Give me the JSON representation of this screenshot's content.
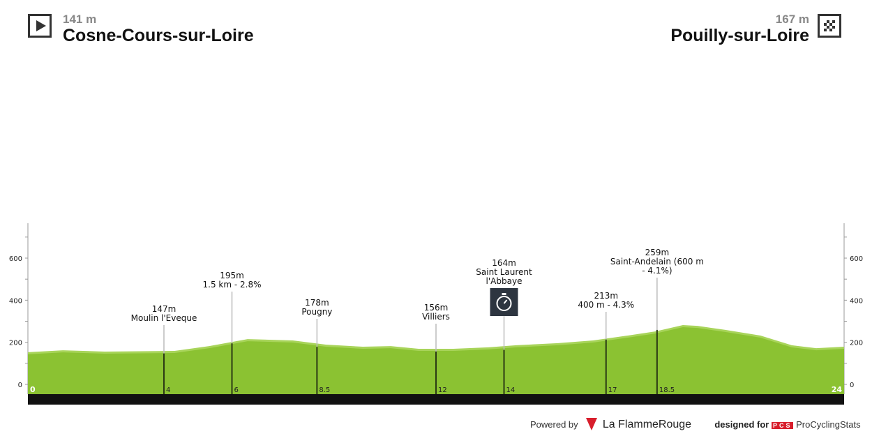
{
  "start": {
    "altitude": "141 m",
    "town": "Cosne-Cours-sur-Loire",
    "icon": "play-icon"
  },
  "finish": {
    "altitude": "167 m",
    "town": "Pouilly-sur-Loire",
    "icon": "checkered-flag-icon"
  },
  "footer": {
    "powered_by": "Powered by",
    "brand1": "La FlammeRouge",
    "designed_for": "designed for",
    "pcs_badge": "PCS",
    "brand2": "ProCyclingStats"
  },
  "colors": {
    "profile": "#8bc232",
    "profile_light": "#a8d45a",
    "road": "#111111",
    "marker": "#2b3a14"
  },
  "chart_data": {
    "type": "area",
    "xlabel": "",
    "ylabel": "",
    "xlim": [
      0,
      24
    ],
    "ylim": [
      -50,
      750
    ],
    "y_ticks": [
      0,
      200,
      400,
      600
    ],
    "x_end_labels": [
      "0",
      "24"
    ],
    "x": [
      0,
      1.03,
      2.26,
      4.31,
      5.33,
      6.46,
      7.79,
      8.76,
      9.85,
      10.67,
      11.49,
      12.51,
      13.54,
      14.36,
      15.59,
      16.62,
      17.64,
      18.46,
      19.26,
      19.69,
      20.51,
      21.54,
      22.46,
      23.18,
      24
    ],
    "elevation": [
      143,
      152,
      146,
      149,
      172,
      205,
      199,
      179,
      169,
      172,
      159,
      159,
      166,
      176,
      186,
      199,
      222,
      242,
      272,
      268,
      249,
      222,
      176,
      162,
      169
    ],
    "markers": [
      {
        "km": 4,
        "label_km": "4",
        "lines": [
          "147m",
          "Moulin l'Eveque"
        ],
        "elev": 147
      },
      {
        "km": 6,
        "label_km": "6",
        "lines": [
          "195m",
          "1.5 km - 2.8%"
        ],
        "elev": 195
      },
      {
        "km": 8.5,
        "label_km": "8.5",
        "lines": [
          "178m",
          "Pougny"
        ],
        "elev": 178
      },
      {
        "km": 12,
        "label_km": "12",
        "lines": [
          "156m",
          "Villiers"
        ],
        "elev": 156
      },
      {
        "km": 14,
        "label_km": "14",
        "lines": [
          "164m",
          "Saint Laurent",
          "l'Abbaye"
        ],
        "elev": 164,
        "icon": "stopwatch-icon"
      },
      {
        "km": 17,
        "label_km": "17",
        "lines": [
          "213m",
          "400 m - 4.3%"
        ],
        "elev": 213
      },
      {
        "km": 18.5,
        "label_km": "18.5",
        "lines": [
          "259m",
          "Saint-Andelain (600 m",
          "- 4.1%)"
        ],
        "elev": 259
      }
    ]
  }
}
